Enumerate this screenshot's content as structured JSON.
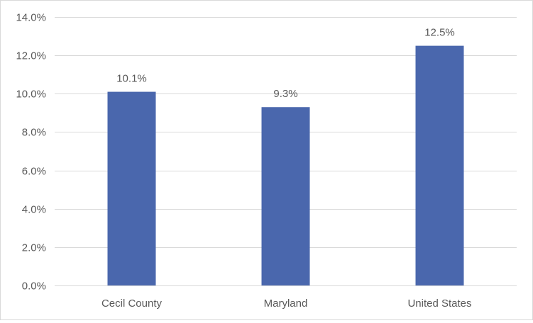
{
  "chart_data": {
    "type": "bar",
    "categories": [
      "Cecil County",
      "Maryland",
      "United States"
    ],
    "values": [
      10.1,
      9.3,
      12.5
    ],
    "data_labels": [
      "10.1%",
      "9.3%",
      "12.5%"
    ],
    "title": "",
    "xlabel": "",
    "ylabel": "",
    "ylim": [
      0,
      14
    ],
    "y_ticks": [
      0,
      2,
      4,
      6,
      8,
      10,
      12,
      14
    ],
    "y_tick_labels": [
      "0.0%",
      "2.0%",
      "4.0%",
      "6.0%",
      "8.0%",
      "10.0%",
      "12.0%",
      "14.0%"
    ],
    "grid": true,
    "legend": "none",
    "bar_color": "#4a67ad",
    "grid_color": "#d9d9d9",
    "text_color": "#595959"
  }
}
